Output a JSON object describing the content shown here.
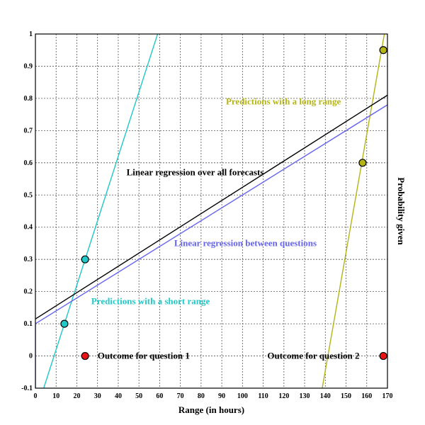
{
  "chart_data": {
    "type": "scatter",
    "title": "",
    "xlabel": "Range (in hours)",
    "ylabel": "Probability given",
    "xlim": [
      0,
      170
    ],
    "ylim": [
      -0.1,
      1
    ],
    "x_ticks": [
      "0",
      "10",
      "20",
      "30",
      "40",
      "50",
      "60",
      "70",
      "80",
      "90",
      "100",
      "110",
      "120",
      "130",
      "140",
      "150",
      "160",
      "170"
    ],
    "y_ticks": [
      "-0.1",
      "0",
      "0.1",
      "0.2",
      "0.3",
      "0.4",
      "0.5",
      "0.6",
      "0.7",
      "0.8",
      "0.9",
      "1"
    ],
    "grid": true,
    "series": [
      {
        "kind": "points",
        "color": "#20c8c8",
        "points": [
          [
            14,
            0.1
          ],
          [
            24,
            0.3
          ]
        ]
      },
      {
        "kind": "points",
        "color": "#b4b414",
        "points": [
          [
            158,
            0.6
          ],
          [
            168,
            0.95
          ]
        ]
      },
      {
        "kind": "points",
        "color": "#e81414",
        "points": [
          [
            24,
            0.0
          ],
          [
            168,
            0.0
          ]
        ]
      },
      {
        "kind": "line",
        "color": "#20c8c8",
        "points": [
          [
            4,
            -0.1
          ],
          [
            59,
            1.0
          ]
        ]
      },
      {
        "kind": "line",
        "color": "#b4b414",
        "points": [
          [
            138.5,
            -0.1
          ],
          [
            168.5,
            1.0
          ]
        ]
      },
      {
        "kind": "line",
        "color": "#000000",
        "points": [
          [
            0,
            0.115
          ],
          [
            170,
            0.81
          ]
        ]
      },
      {
        "kind": "line",
        "color": "#6464f0",
        "points": [
          [
            0,
            0.1
          ],
          [
            170,
            0.78
          ]
        ]
      },
      {
        "kind": "line",
        "color": "#6464f0",
        "points": [
          [
            0,
            -0.1
          ],
          [
            0,
            0.1
          ]
        ]
      }
    ],
    "annotations": [
      {
        "text": "Predictions with a long range",
        "x": 92,
        "y": 0.79,
        "color": "#b4b414"
      },
      {
        "text": "Linear regression over all forecasts",
        "x": 44,
        "y": 0.57,
        "color": "#000000"
      },
      {
        "text": "Linear regression between questions",
        "x": 67,
        "y": 0.35,
        "color": "#6464f0"
      },
      {
        "text": "Predictions with a short range",
        "x": 27,
        "y": 0.17,
        "color": "#20c8c8"
      },
      {
        "text": "Outcome for question 1",
        "x": 30,
        "y": 0.0,
        "color": "#000000"
      },
      {
        "text": "Outcome for question 2",
        "x": 112,
        "y": 0.0,
        "color": "#000000"
      }
    ]
  }
}
